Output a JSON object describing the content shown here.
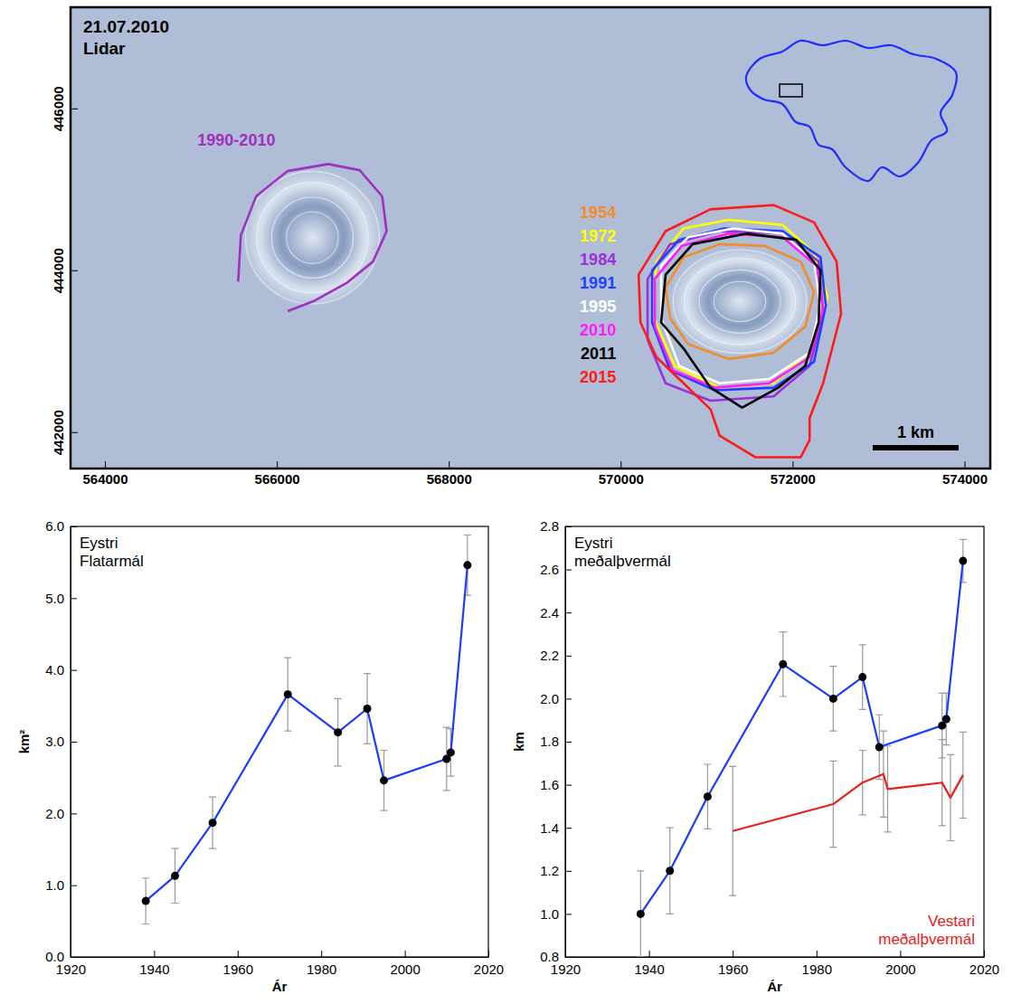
{
  "chart_data": [
    {
      "type": "map",
      "title": "21.07.2010",
      "subtitle": "Lidar",
      "xlim": [
        563600,
        574300
      ],
      "ylim": [
        441550,
        447250
      ],
      "xticks": [
        564000,
        566000,
        568000,
        570000,
        572000,
        574000
      ],
      "yticks": [
        442000,
        444000,
        446000
      ],
      "legend": "left",
      "scale_bar": {
        "value": 1000,
        "label": "1 km"
      },
      "series": [
        {
          "name": "1990-2010",
          "color": "#a030c0",
          "type": "line",
          "x": [
            565550,
            565581,
            565759,
            566126,
            566597,
            566963,
            567225,
            567277,
            567120,
            566806,
            566440,
            566126
          ],
          "values": [
            443860,
            444430,
            444914,
            445226,
            445312,
            445237,
            444914,
            444484,
            444108,
            443839,
            443624,
            443495
          ]
        },
        {
          "name": "1954",
          "color": "#f28c28",
          "type": "polygon",
          "x": [
            570523,
            570732,
            571151,
            571675,
            572093,
            572250,
            572146,
            571779,
            571256,
            570785,
            570575
          ],
          "values": [
            443785,
            444161,
            444323,
            444301,
            444108,
            443731,
            443301,
            442979,
            442904,
            443086,
            443409
          ]
        },
        {
          "name": "1972",
          "color": "#ffff00",
          "type": "polygon",
          "x": [
            570418,
            570732,
            571256,
            571884,
            572250,
            572407,
            572250,
            571779,
            571151,
            570628,
            570366
          ],
          "values": [
            444108,
            444516,
            444624,
            444559,
            444215,
            443678,
            443033,
            442603,
            442549,
            442818,
            443463
          ]
        },
        {
          "name": "1984",
          "color": "#9b30d9",
          "type": "polygon",
          "x": [
            570313,
            570575,
            571151,
            571884,
            572303,
            572355,
            572198,
            571779,
            571046,
            570523,
            570313
          ],
          "values": [
            443893,
            444323,
            444484,
            444452,
            444108,
            443463,
            442818,
            442441,
            442388,
            442603,
            443140
          ]
        },
        {
          "name": "1991",
          "color": "#1f3fff",
          "type": "polygon",
          "x": [
            570366,
            570680,
            571204,
            571884,
            572324,
            572387,
            572250,
            571779,
            571099,
            570575,
            570366
          ],
          "values": [
            444000,
            444376,
            444516,
            444484,
            444161,
            443570,
            442871,
            442549,
            442516,
            442764,
            443355
          ]
        },
        {
          "name": "1995",
          "color": "#ffffff",
          "type": "polygon",
          "x": [
            570471,
            570785,
            571308,
            571884,
            572250,
            572324,
            572198,
            571727,
            571151,
            570680,
            570471
          ],
          "values": [
            444054,
            444409,
            444516,
            444452,
            444108,
            443570,
            442979,
            442656,
            442603,
            442818,
            443409
          ]
        },
        {
          "name": "2010",
          "color": "#ff1aff",
          "type": "polygon",
          "x": [
            570397,
            570711,
            571256,
            571884,
            572282,
            572355,
            572198,
            571727,
            571099,
            570606,
            570397
          ],
          "values": [
            443893,
            444301,
            444452,
            444409,
            444054,
            443516,
            442925,
            442603,
            442549,
            442764,
            443301
          ]
        },
        {
          "name": "2011",
          "color": "#000000",
          "type": "polygon",
          "x": [
            570523,
            570837,
            571465,
            572041,
            572324,
            572303,
            572146,
            571832,
            571413,
            571046,
            570732,
            570471
          ],
          "values": [
            443946,
            444323,
            444452,
            444376,
            444000,
            443355,
            442818,
            442549,
            442302,
            442549,
            443033,
            443355
          ]
        },
        {
          "name": "2015",
          "color": "#ff1a1a",
          "type": "polygon",
          "x": [
            570209,
            570523,
            571046,
            571779,
            572250,
            572512,
            572564,
            572407,
            572355,
            572198,
            572198,
            572093,
            571570,
            571151,
            571046,
            570732,
            570418,
            570230
          ],
          "values": [
            443946,
            444484,
            444753,
            444806,
            444591,
            444108,
            443463,
            442818,
            442603,
            442173,
            441904,
            441689,
            441689,
            441957,
            442280,
            442603,
            442925,
            443355
          ]
        }
      ]
    },
    {
      "type": "line",
      "title": "Eystri Flatarmál",
      "xlabel": "Ár",
      "ylabel": "km²",
      "xlim": [
        1920,
        2020
      ],
      "ylim": [
        0,
        6
      ],
      "xticks": [
        1920,
        1940,
        1960,
        1980,
        2000,
        2020
      ],
      "yticks": [
        {
          "value": 0,
          "label": "0.0"
        },
        {
          "value": 1,
          "label": "1.0"
        },
        {
          "value": 2,
          "label": "2.0"
        },
        {
          "value": 3,
          "label": "3.0"
        },
        {
          "value": 4,
          "label": "4.0"
        },
        {
          "value": 5,
          "label": "5.0"
        },
        {
          "value": 6,
          "label": "6.0"
        }
      ],
      "series": [
        {
          "color": "#1a3cff",
          "marker": "circle",
          "x": [
            1938,
            1945,
            1954,
            1972,
            1984,
            1991,
            1995,
            2010,
            2011,
            2015
          ],
          "values": [
            0.78,
            1.13,
            1.87,
            3.66,
            3.13,
            3.46,
            2.46,
            2.76,
            2.85,
            5.46
          ],
          "errors": [
            0.32,
            0.38,
            0.36,
            0.51,
            0.47,
            0.49,
            0.42,
            0.44,
            0.33,
            0.42
          ]
        }
      ]
    },
    {
      "type": "line",
      "xlabel": "Ár",
      "ylabel": "km",
      "xlim": [
        1920,
        2020
      ],
      "ylim": [
        0.8,
        2.8
      ],
      "xticks": [
        1920,
        1940,
        1960,
        1980,
        2000,
        2020
      ],
      "yticks": [
        0.8,
        {
          "value": 1,
          "label": "1.0"
        },
        1.2,
        1.4,
        1.6,
        1.8,
        {
          "value": 2,
          "label": "2.0"
        },
        2.2,
        2.4,
        2.6,
        2.8
      ],
      "series": [
        {
          "name": "Eystri meðalþvermál",
          "color": "#1a3cff",
          "marker": "circle",
          "x": [
            1938,
            1945,
            1954,
            1972,
            1984,
            1991,
            1995,
            2010,
            2011,
            2015
          ],
          "values": [
            1.0,
            1.2,
            1.545,
            2.16,
            2.0,
            2.1,
            1.775,
            1.875,
            1.905,
            2.64
          ],
          "errors": [
            0.2,
            0.2,
            0.15,
            0.15,
            0.15,
            0.15,
            0.15,
            0.15,
            0.12,
            0.1
          ]
        },
        {
          "name": "Vestari meðalþvermál",
          "color": "#e8201a",
          "marker": "none",
          "x": [
            1960,
            1984,
            1991,
            1996,
            1997,
            2010,
            2012,
            2015
          ],
          "values": [
            1.385,
            1.51,
            1.61,
            1.65,
            1.58,
            1.61,
            1.54,
            1.645
          ],
          "errors": [
            0.3,
            0.2,
            0.15,
            0.2,
            0.2,
            0.2,
            0.2,
            0.2
          ]
        }
      ]
    }
  ]
}
